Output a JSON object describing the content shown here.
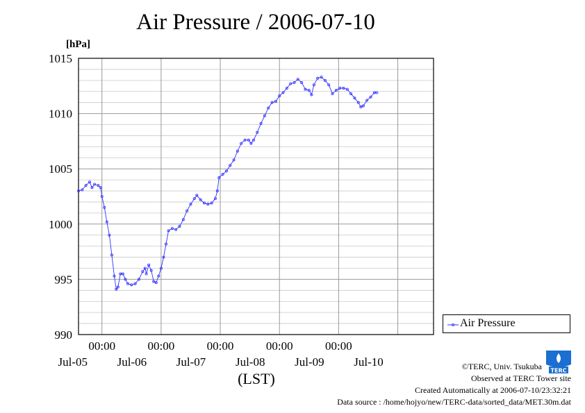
{
  "colors": {
    "series": "#3030ff",
    "grid_major": "#999999",
    "grid_minor": "#c8c8c8",
    "axis": "#000000"
  },
  "chart_data": {
    "type": "line",
    "title": "Air Pressure / 2006-07-10",
    "ylabel": "[hPa]",
    "xlabel": "(LST)",
    "ylim": [
      990,
      1015
    ],
    "yticks": [
      990,
      995,
      1000,
      1005,
      1010,
      1015
    ],
    "xlim_hours_from_jul05_0000": [
      -9.5,
      134.5
    ],
    "x_ticks": [
      {
        "pos": 0,
        "time": "00:00",
        "date": "Jul-05"
      },
      {
        "pos": 24,
        "time": "00:00",
        "date": "Jul-06"
      },
      {
        "pos": 48,
        "time": "00:00",
        "date": "Jul-07"
      },
      {
        "pos": 72,
        "time": "00:00",
        "date": "Jul-08"
      },
      {
        "pos": 96,
        "time": "00:00",
        "date": "Jul-09"
      },
      {
        "pos": 120,
        "time": "",
        "date": "Jul-10"
      }
    ],
    "grid": true,
    "legend_position": "right",
    "series": [
      {
        "name": "Air Pressure",
        "points": [
          [
            -9.5,
            1003.0
          ],
          [
            -8,
            1003.1
          ],
          [
            -6.5,
            1003.5
          ],
          [
            -5,
            1003.8
          ],
          [
            -4,
            1003.3
          ],
          [
            -3,
            1003.6
          ],
          [
            -1.5,
            1003.5
          ],
          [
            -0.5,
            1003.3
          ],
          [
            0,
            1002.5
          ],
          [
            1,
            1001.5
          ],
          [
            2,
            1000.2
          ],
          [
            3,
            999.0
          ],
          [
            4,
            997.2
          ],
          [
            5,
            995.3
          ],
          [
            5.8,
            994.1
          ],
          [
            6.5,
            994.3
          ],
          [
            7.5,
            995.5
          ],
          [
            8.5,
            995.5
          ],
          [
            9.5,
            995.0
          ],
          [
            10.5,
            994.6
          ],
          [
            12,
            994.5
          ],
          [
            13.5,
            994.6
          ],
          [
            15,
            995.0
          ],
          [
            16.5,
            995.7
          ],
          [
            17.5,
            996.0
          ],
          [
            18,
            995.5
          ],
          [
            19,
            996.3
          ],
          [
            20,
            995.8
          ],
          [
            21,
            994.8
          ],
          [
            22,
            994.7
          ],
          [
            23,
            995.3
          ],
          [
            24,
            996.0
          ],
          [
            25,
            997.0
          ],
          [
            26,
            998.2
          ],
          [
            27,
            999.4
          ],
          [
            28.5,
            999.6
          ],
          [
            30,
            999.5
          ],
          [
            31.5,
            999.8
          ],
          [
            33,
            1000.4
          ],
          [
            34.5,
            1001.2
          ],
          [
            36,
            1001.8
          ],
          [
            37.5,
            1002.3
          ],
          [
            38.5,
            1002.6
          ],
          [
            40,
            1002.2
          ],
          [
            41.5,
            1001.9
          ],
          [
            43,
            1001.8
          ],
          [
            44.5,
            1001.9
          ],
          [
            46,
            1002.3
          ],
          [
            46.8,
            1003.0
          ],
          [
            47.5,
            1004.2
          ],
          [
            49,
            1004.5
          ],
          [
            50.5,
            1004.8
          ],
          [
            52,
            1005.3
          ],
          [
            53.5,
            1005.8
          ],
          [
            55,
            1006.6
          ],
          [
            56.5,
            1007.3
          ],
          [
            58,
            1007.6
          ],
          [
            59.5,
            1007.6
          ],
          [
            60.5,
            1007.3
          ],
          [
            61.5,
            1007.6
          ],
          [
            63,
            1008.3
          ],
          [
            64.5,
            1009.1
          ],
          [
            66,
            1009.8
          ],
          [
            67.5,
            1010.5
          ],
          [
            69,
            1011.0
          ],
          [
            70.5,
            1011.1
          ],
          [
            72,
            1011.6
          ],
          [
            73.5,
            1011.9
          ],
          [
            75,
            1012.3
          ],
          [
            76.5,
            1012.7
          ],
          [
            78,
            1012.8
          ],
          [
            79.5,
            1013.1
          ],
          [
            81,
            1012.8
          ],
          [
            82.5,
            1012.2
          ],
          [
            84,
            1012.1
          ],
          [
            85,
            1011.7
          ],
          [
            86,
            1012.6
          ],
          [
            87.5,
            1013.2
          ],
          [
            89,
            1013.3
          ],
          [
            90.5,
            1013.0
          ],
          [
            92,
            1012.6
          ],
          [
            93.5,
            1011.8
          ],
          [
            95,
            1012.1
          ],
          [
            96.5,
            1012.3
          ],
          [
            98,
            1012.3
          ],
          [
            99.5,
            1012.2
          ],
          [
            101,
            1011.8
          ],
          [
            102.5,
            1011.4
          ],
          [
            104,
            1011.0
          ],
          [
            105,
            1010.6
          ],
          [
            106,
            1010.7
          ],
          [
            107.5,
            1011.2
          ],
          [
            109,
            1011.5
          ],
          [
            110.5,
            1011.9
          ],
          [
            111.5,
            1011.9
          ]
        ]
      }
    ]
  },
  "legend": {
    "label": "Air Pressure"
  },
  "credits": {
    "copyright": "©TERC, Univ. Tsukuba",
    "observed": "Observed at TERC Tower site",
    "created": "Created Automatically at 2006-07-10/23:32:21",
    "source": "Data source : /home/hojyo/new/TERC-data/sorted_data/MET.30m.dat"
  },
  "logo": {
    "text": "TERC"
  }
}
